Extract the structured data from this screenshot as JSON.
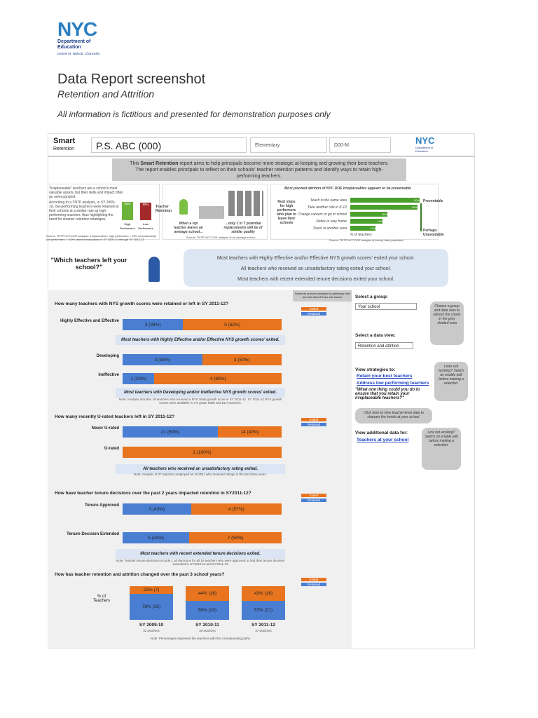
{
  "header": {
    "logo": "NYC",
    "department": "Department of Education",
    "chancellor": "Dennis M. Walcott, Chancellor"
  },
  "title": "Data Report screenshot",
  "subtitle": "Retention and Attrition",
  "disclaimer": "All information is fictitious and presented for demonstration purposes only",
  "report": {
    "brand": "Smart",
    "brand_sub": "Retention",
    "school": "P.S. ABC (000)",
    "level": "Elementary",
    "district": "D00-M",
    "logo": "NYC",
    "logo_sub": "Department of Education",
    "intro_prefix": "This",
    "intro_bold": "Smart Retention",
    "intro_rest": "report aims to help principals become more strategic at keeping and growing their best teachers. The report enables principals to reflect on their schools' teacher retention patterns and identify ways to retain high-performing teachers."
  },
  "infographic": {
    "left_lead": "\"Irreplaceable\" teachers are a school's most valuable assets, but their skills and impact often go unrecognized.",
    "left_body": "According to a TNTP analysis, in SY 2009-10, low-performing teachers were retained at their schools at a similar rate as high-performing teachers, thus highlighting the need for smarter retention strategies",
    "retention": [
      {
        "label": "High Performers",
        "pct": 88,
        "value_label": "88%"
      },
      {
        "label": "Low Performers",
        "pct": 85,
        "value_label": "85%"
      }
    ],
    "retention_title": "Teacher Retention",
    "left_source": "Source: TNTP NYC DOE analysis; Irreplaceables: high performers = 20% (Irreplaceable) low performers = 100% distinct evaluations in SY 2009-10 through SY 2012-13",
    "middle_a": "When a top teacher leaves an average school...",
    "middle_b": "...only 1 in 7 potential replacements will be of similar quality",
    "middle_source": "Source: TNTP NYC DOE analysis of an average school",
    "right_title": "Most planned attrition of NYC DOE Irreplaceables appears to be preventable",
    "right_side": "Next steps for high performers who plan to leave their schools",
    "plans": [
      {
        "label": "Teach in the same area",
        "pct": 30,
        "value_label": "30%"
      },
      {
        "label": "Take another role in K-12",
        "pct": 29,
        "value_label": "29%"
      },
      {
        "label": "Change careers or go to school",
        "pct": 16,
        "value_label": "16%"
      },
      {
        "label": "Retire or stay home",
        "pct": 14,
        "value_label": "14%"
      },
      {
        "label": "Teach in another area",
        "pct": 11,
        "value_label": "11%"
      }
    ],
    "plans_axis": "% of teachers",
    "preventable": "Preventable",
    "unavoidable": "Perhaps Unavoidable",
    "right_source": "Source: TNTP NYC DOE analysis of survey data population"
  },
  "question": {
    "text": "\"Which teachers left your school?\"",
    "findings": [
      "Most teachers with Highly Effective and/or Effective NYS growth scores' exited your school.",
      "All teachers who received an unsatisfactory rating exited your school.",
      "Most teachers with recent extended tenure decisions exited your school."
    ]
  },
  "legend": {
    "exited": "Exited",
    "retained": "Retained",
    "note": "Numbers and percentages by pathways that are less than 5% are not shown"
  },
  "charts": [
    {
      "question": "How many teachers with NYS growth scores were retained or left in SY 2011-12?",
      "groups": [
        {
          "rows": [
            {
              "label": "Highly Effective and Effective",
              "retained": {
                "pct": 38,
                "label": "3 (38%)"
              },
              "exited": {
                "pct": 62,
                "label": "5 (62%)"
              }
            }
          ],
          "insight": "Most teachers with Highly Effective and/or Effective NYS growth scores' exited."
        },
        {
          "rows": [
            {
              "label": "Developing",
              "retained": {
                "pct": 50,
                "label": "3 (50%)"
              },
              "exited": {
                "pct": 50,
                "label": "3 (50%)"
              }
            },
            {
              "label": "Ineffective",
              "retained": {
                "pct": 20,
                "label": "1 (20%)"
              },
              "exited": {
                "pct": 80,
                "label": "4 (80%)"
              }
            }
          ],
          "insight": "Most teachers with Developing and/or Ineffective NYS growth scores' exited."
        }
      ],
      "note": "Note: Analysis includes 19 teachers who received a NYS State growth score in SY 2011-12. SY 2011-12 NYS growth scores were available in 4-8 grade Math and ELA teachers."
    },
    {
      "question": "How many recently U-rated teachers left in SY 2011-12?",
      "groups": [
        {
          "rows": [
            {
              "label": "Never U-rated",
              "retained": {
                "pct": 60,
                "label": "21 (60%)"
              },
              "exited": {
                "pct": 40,
                "label": "14 (40%)"
              }
            },
            {
              "label": "U-rated",
              "exited": {
                "pct": 100,
                "label": "2 (100%)"
              }
            }
          ],
          "insight": "All teachers who received an unsatisfactory rating exited."
        }
      ],
      "note": "Note: Analysis of 37 teachers employed as 11/2011 who received ratings in the last three years."
    },
    {
      "question": "How have teacher tenure decisions over the past 2 years impacted retention in SY2011-12?",
      "groups": [
        {
          "rows": [
            {
              "label": "Tenure Approved",
              "retained": {
                "pct": 43,
                "label": "3 (43%)"
              },
              "exited": {
                "pct": 57,
                "label": "4 (57%)"
              }
            },
            {
              "label": "Tenure Decision Extended",
              "retained": {
                "pct": 42,
                "label": "5 (42%)"
              },
              "exited": {
                "pct": 58,
                "label": "7 (58%)"
              }
            }
          ],
          "insight": "Most teachers with recent extended tenure decisions exited."
        }
      ],
      "note": "Note: Teacher tenure decisions include 1 all decisions for all 19 teachers who were approved or had their tenure decision extended in SY2010-11 and SY2011-12"
    }
  ],
  "trend": {
    "question": "How has teacher retention and attrition changed over the past 3 school years?",
    "y_label": "% of Teachers",
    "years": [
      {
        "label": "SY 2009-10",
        "count": "32 teachers",
        "exited": {
          "pct": 22,
          "label": "22% (7)"
        },
        "retained": {
          "pct": 78,
          "label": "78% (25)"
        }
      },
      {
        "label": "SY 2010-11",
        "count": "36 teachers",
        "exited": {
          "pct": 44,
          "label": "44% (16)"
        },
        "retained": {
          "pct": 56,
          "label": "56% (20)"
        }
      },
      {
        "label": "SY 2011-12",
        "count": "37 teachers",
        "exited": {
          "pct": 43,
          "label": "43% (16)"
        },
        "retained": {
          "pct": 57,
          "label": "57% (21)"
        }
      }
    ],
    "note": "Note: Percentages represent the teachers with the corresponding paths"
  },
  "sidebar": {
    "group_label": "Select a group:",
    "group_value": "Your school",
    "group_help": "Choose a group and data view to refresh the charts in the grey shaded area",
    "view_label": "Select a data view:",
    "view_value": "Retention and attrition",
    "strategies_label": "View strategies to:",
    "links": [
      "Retain your best teachers",
      "Address low performing teachers"
    ],
    "prompt": "\"What one thing could you do to ensure that you retain your irreplaceable teachers?\"",
    "links_help": "Links not working? Switch on enable edit before making a selection.",
    "teacher_help": "Click here to view teacher-level data to sharpen the trends at your school.",
    "additional_label": "View additional data for:",
    "additional_link": "Teachers at your school",
    "additional_help": "Link not working? Switch on enable edit before making a selection."
  }
}
